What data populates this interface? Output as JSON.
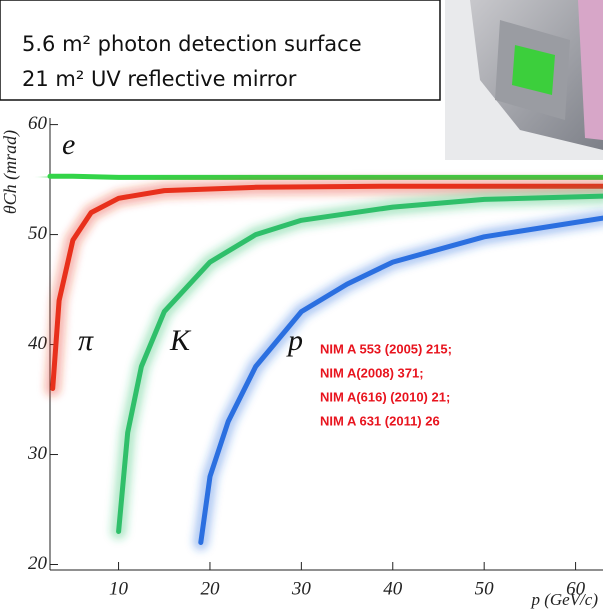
{
  "chart_data": {
    "type": "line",
    "box_lines": [
      "5.6 m² photon detection surface",
      "21 m² UV reflective mirror"
    ],
    "x_label": "p (GeV/c)",
    "y_label": "θCh (mrad)",
    "xlim": [
      2.5,
      63
    ],
    "ylim": [
      19.5,
      60.6
    ],
    "xticks": [
      10,
      20,
      30,
      40,
      50,
      60
    ],
    "yticks": [
      20,
      30,
      40,
      50,
      60
    ],
    "series": [
      {
        "name": "e",
        "color": "#33d448",
        "x": [
          2.5,
          5,
          10,
          20,
          40,
          63
        ],
        "values": [
          55.3,
          55.3,
          55.2,
          55.2,
          55.2,
          55.2
        ]
      },
      {
        "name": "π",
        "color": "#e8301c",
        "x": [
          2.8,
          3.5,
          5,
          7,
          10,
          15,
          25,
          40,
          63
        ],
        "values": [
          36,
          44,
          49.5,
          52,
          53.3,
          54,
          54.3,
          54.4,
          54.4
        ]
      },
      {
        "name": "K",
        "color": "#2fbf6a",
        "x": [
          10,
          11,
          12.5,
          15,
          20,
          25,
          30,
          40,
          50,
          63
        ],
        "values": [
          23,
          32,
          38,
          43,
          47.5,
          50,
          51.3,
          52.5,
          53.2,
          53.5
        ]
      },
      {
        "name": "p",
        "color": "#2b6fe0",
        "x": [
          19,
          20,
          22,
          25,
          30,
          35,
          40,
          50,
          63
        ],
        "values": [
          22,
          28,
          33,
          38,
          43,
          45.5,
          47.5,
          49.8,
          51.5
        ]
      }
    ],
    "references": [
      "NIM A 553 (2005) 215;",
      "NIM A(2008) 371;",
      "NIM A(616) (2010) 21;",
      "NIM A 631 (2011) 26"
    ]
  }
}
